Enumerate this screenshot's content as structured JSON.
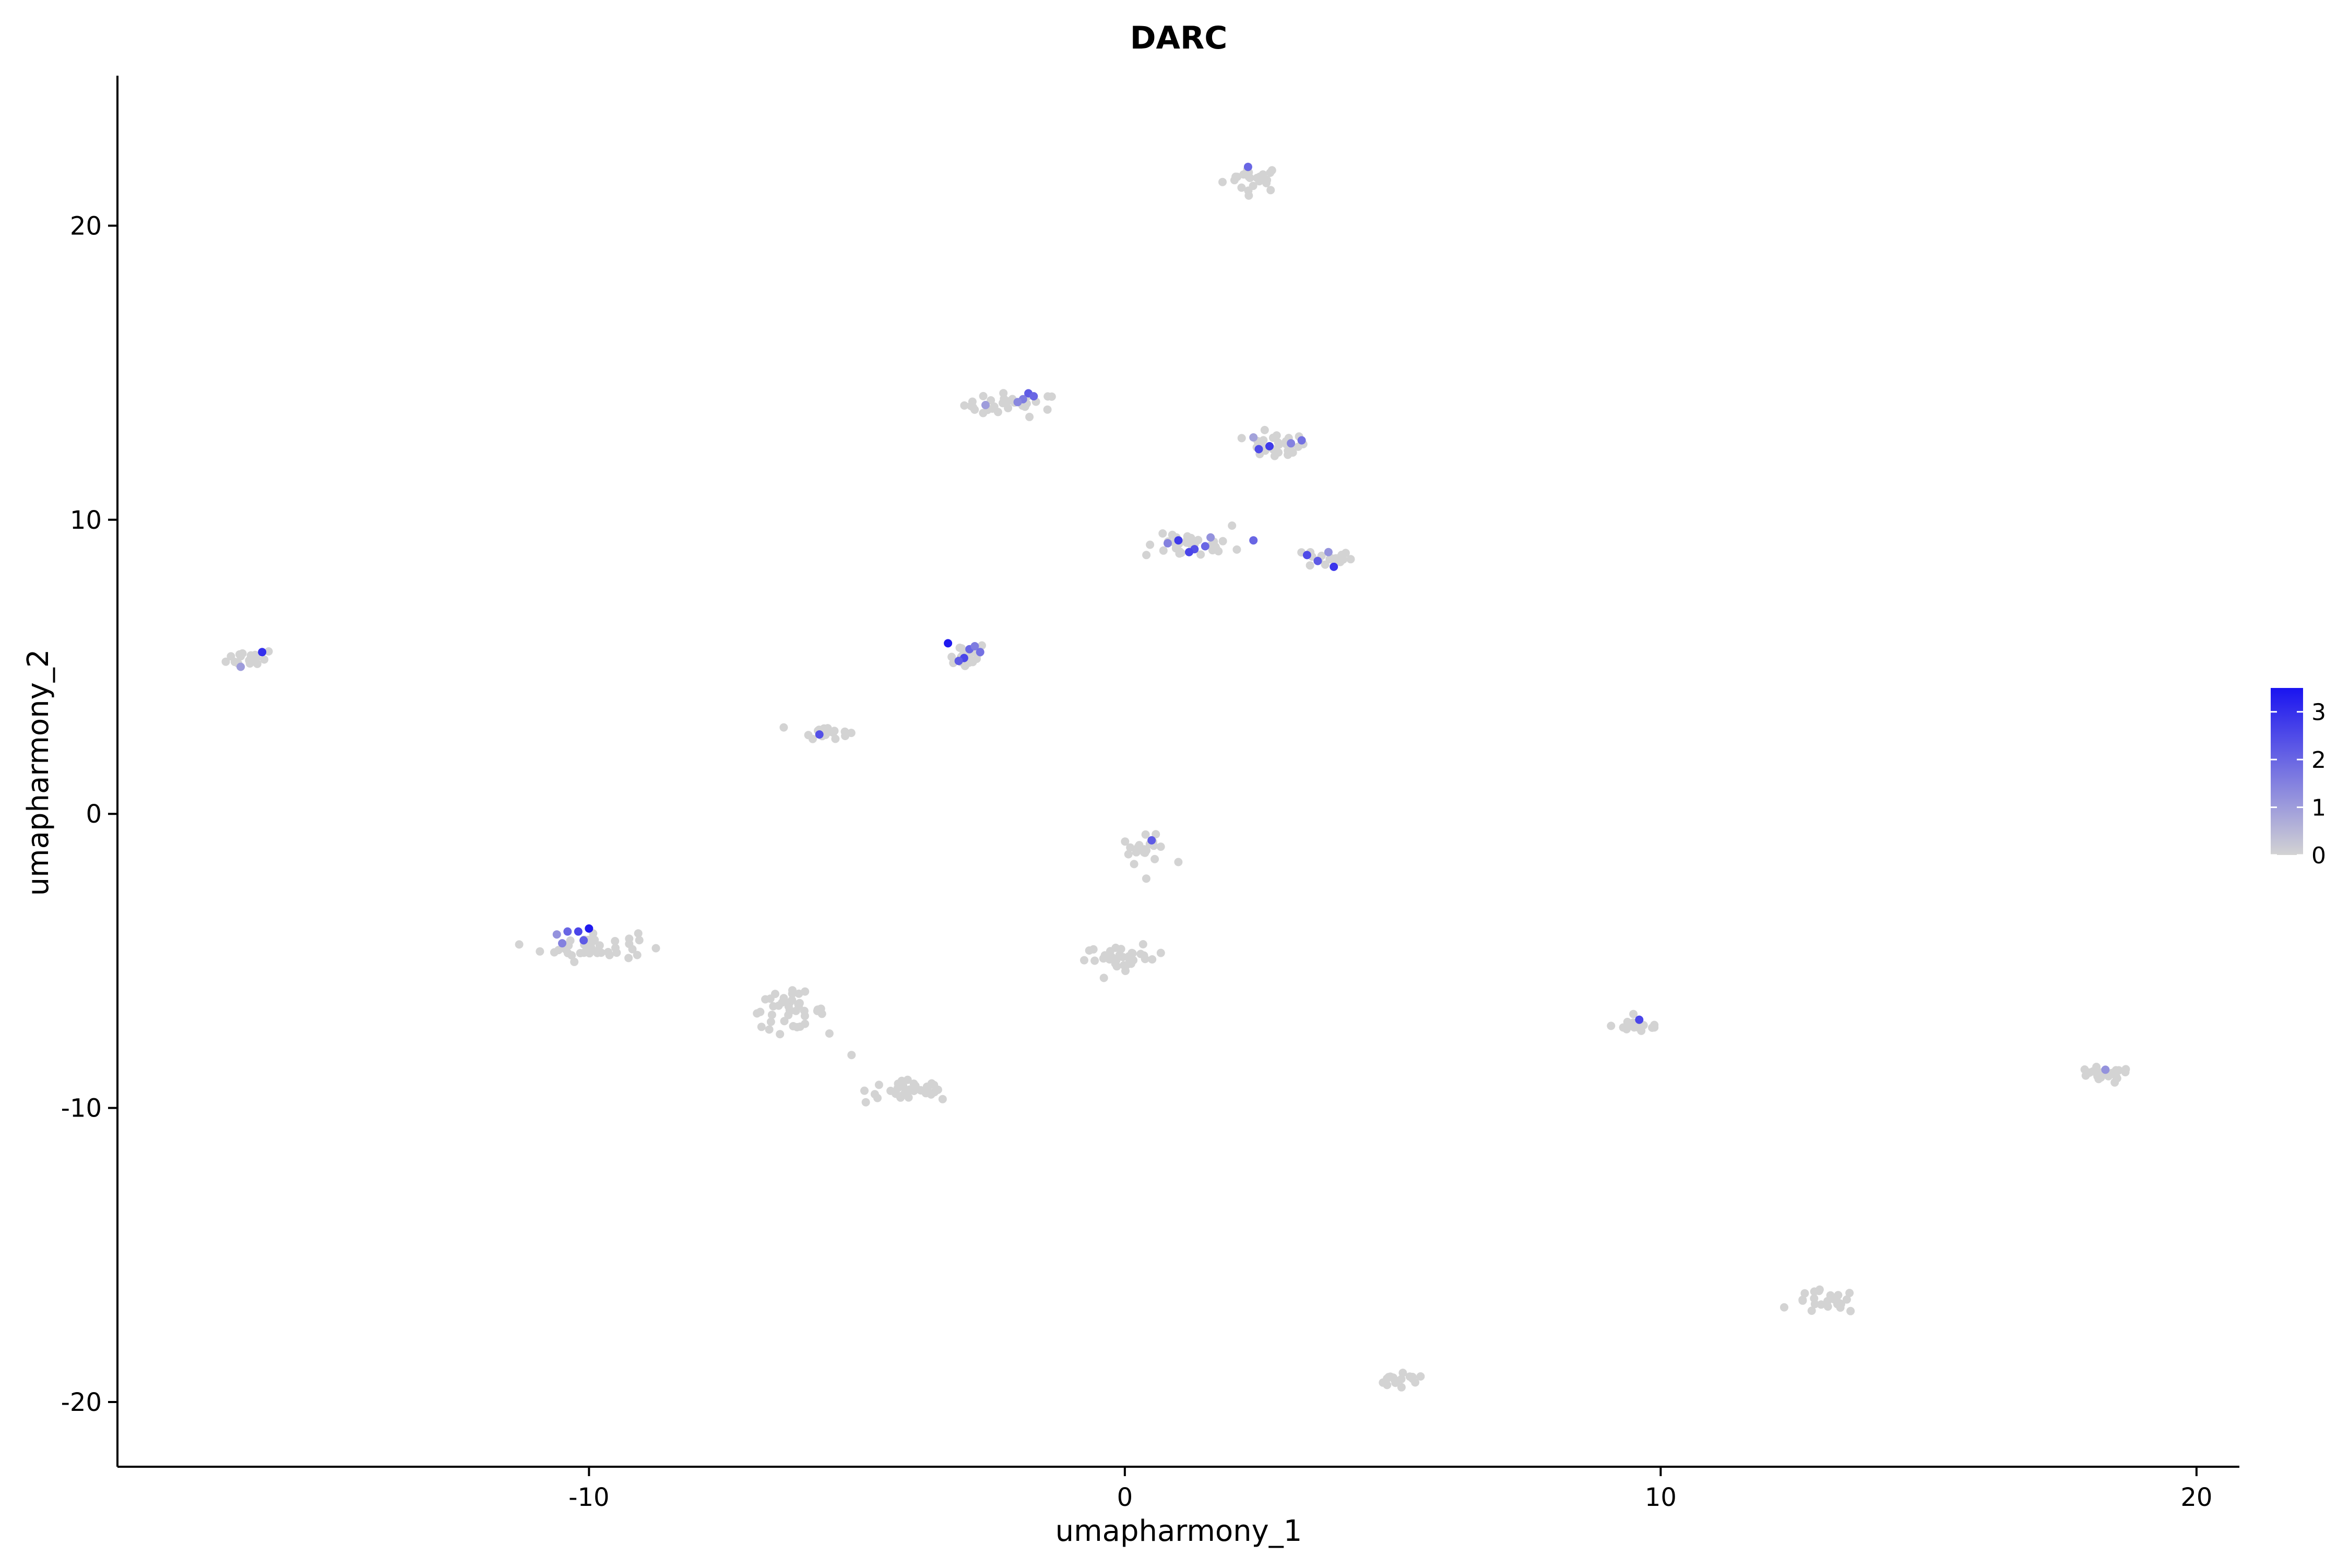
{
  "chart_data": {
    "type": "scatter",
    "title": "DARC",
    "xlabel": "umapharmony_1",
    "ylabel": "umapharmony_2",
    "xlim": [
      -18.8,
      20.8
    ],
    "ylim": [
      -22.2,
      25.1
    ],
    "x_ticks": [
      -10,
      0,
      10,
      20
    ],
    "y_ticks": [
      -20,
      -10,
      0,
      10,
      20
    ],
    "x_tick_labels": [
      "-10",
      "0",
      "10",
      "20"
    ],
    "y_tick_labels": [
      "-20",
      "-10",
      "0",
      "10",
      "20"
    ],
    "grid": false,
    "legend": {
      "position": "right",
      "type": "colorbar",
      "min": 0,
      "max": 3.5,
      "ticks": [
        0,
        1,
        2,
        3
      ],
      "tick_labels": [
        "0",
        "1",
        "2",
        "3"
      ],
      "low_color": "#d3d3d3",
      "high_color": "#1a14f0"
    },
    "clusters": [
      {
        "cx": 2.4,
        "cy": 21.6,
        "n": 22,
        "sx": 0.28,
        "sy": 0.22,
        "expr": [
          [
            2.3,
            22.0,
            2.0
          ]
        ]
      },
      {
        "cx": -2.1,
        "cy": 13.9,
        "n": 30,
        "sx": 0.45,
        "sy": 0.2,
        "expr": [
          [
            -1.8,
            14.3,
            2.2
          ],
          [
            -1.9,
            14.1,
            1.6
          ],
          [
            -2.6,
            13.9,
            1.0
          ],
          [
            -2.0,
            14.0,
            1.4
          ],
          [
            -1.7,
            14.2,
            2.0
          ]
        ]
      },
      {
        "cx": 2.8,
        "cy": 12.5,
        "n": 26,
        "sx": 0.3,
        "sy": 0.22,
        "expr": [
          [
            2.5,
            12.4,
            2.5
          ],
          [
            2.7,
            12.5,
            2.8
          ],
          [
            3.1,
            12.6,
            1.5
          ],
          [
            3.3,
            12.7,
            1.8
          ],
          [
            2.4,
            12.8,
            0.9
          ]
        ]
      },
      {
        "cx": 1.2,
        "cy": 9.1,
        "n": 30,
        "sx": 0.42,
        "sy": 0.2,
        "expr": [
          [
            1.0,
            9.3,
            2.8
          ],
          [
            1.3,
            9.0,
            2.4
          ],
          [
            1.5,
            9.1,
            2.0
          ],
          [
            1.2,
            8.9,
            2.6
          ],
          [
            0.8,
            9.2,
            1.5
          ],
          [
            1.6,
            9.4,
            1.2
          ],
          [
            2.4,
            9.3,
            2.0
          ]
        ]
      },
      {
        "cx": 3.8,
        "cy": 8.7,
        "n": 18,
        "sx": 0.22,
        "sy": 0.18,
        "expr": [
          [
            3.9,
            8.4,
            2.9
          ],
          [
            3.6,
            8.6,
            2.2
          ],
          [
            3.4,
            8.8,
            2.5
          ],
          [
            3.8,
            8.9,
            1.2
          ]
        ]
      },
      {
        "cx": -3.0,
        "cy": 5.4,
        "n": 26,
        "sx": 0.22,
        "sy": 0.22,
        "expr": [
          [
            -3.3,
            5.8,
            3.4
          ],
          [
            -3.0,
            5.3,
            2.6
          ],
          [
            -2.9,
            5.6,
            2.0
          ],
          [
            -2.8,
            5.7,
            1.6
          ],
          [
            -3.1,
            5.2,
            2.2
          ],
          [
            -2.7,
            5.5,
            1.8
          ]
        ]
      },
      {
        "cx": -16.3,
        "cy": 5.3,
        "n": 18,
        "sx": 0.22,
        "sy": 0.15,
        "expr": [
          [
            -16.1,
            5.5,
            3.0
          ],
          [
            -16.5,
            5.0,
            1.0
          ]
        ]
      },
      {
        "cx": -5.6,
        "cy": 2.8,
        "n": 18,
        "sx": 0.22,
        "sy": 0.12,
        "expr": [
          [
            -5.7,
            2.7,
            2.4
          ]
        ]
      },
      {
        "cx": 0.4,
        "cy": -1.2,
        "n": 20,
        "sx": 0.22,
        "sy": 0.22,
        "expr": [
          [
            0.5,
            -0.9,
            2.2
          ]
        ]
      },
      {
        "cx": -10.0,
        "cy": -4.5,
        "n": 42,
        "sx": 0.45,
        "sy": 0.25,
        "expr": [
          [
            -10.0,
            -3.9,
            3.4
          ],
          [
            -10.2,
            -4.0,
            2.6
          ],
          [
            -10.4,
            -4.0,
            2.0
          ],
          [
            -10.1,
            -4.3,
            2.2
          ],
          [
            -10.5,
            -4.4,
            1.5
          ],
          [
            -10.6,
            -4.1,
            1.2
          ]
        ]
      },
      {
        "cx": 0.0,
        "cy": -4.9,
        "n": 34,
        "sx": 0.38,
        "sy": 0.2,
        "expr": []
      },
      {
        "cx": -6.3,
        "cy": -6.7,
        "n": 40,
        "sx": 0.35,
        "sy": 0.3,
        "expr": []
      },
      {
        "cx": -4.0,
        "cy": -9.4,
        "n": 34,
        "sx": 0.42,
        "sy": 0.22,
        "expr": []
      },
      {
        "cx": 9.6,
        "cy": -7.2,
        "n": 18,
        "sx": 0.25,
        "sy": 0.12,
        "expr": [
          [
            9.6,
            -7.0,
            2.6
          ]
        ]
      },
      {
        "cx": 18.2,
        "cy": -8.9,
        "n": 22,
        "sx": 0.3,
        "sy": 0.14,
        "expr": [
          [
            18.3,
            -8.7,
            1.2
          ]
        ]
      },
      {
        "cx": 13.1,
        "cy": -16.6,
        "n": 24,
        "sx": 0.3,
        "sy": 0.2,
        "expr": []
      },
      {
        "cx": 5.1,
        "cy": -19.3,
        "n": 18,
        "sx": 0.28,
        "sy": 0.12,
        "expr": []
      }
    ],
    "outliers": [
      [
        2.0,
        9.8,
        0
      ],
      [
        0.4,
        -2.2,
        0
      ],
      [
        -5.1,
        -8.2,
        0
      ],
      [
        -3.4,
        -9.7,
        0
      ],
      [
        -9.1,
        -4.8,
        0
      ]
    ]
  }
}
